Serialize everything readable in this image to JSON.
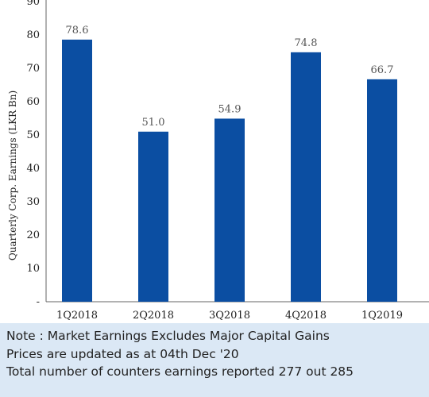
{
  "chart_data": {
    "type": "bar",
    "categories": [
      "1Q2018",
      "2Q2018",
      "3Q2018",
      "4Q2018",
      "1Q2019"
    ],
    "values": [
      78.6,
      51.0,
      54.9,
      74.8,
      66.7
    ],
    "value_labels": [
      "78.6",
      "51.0",
      "54.9",
      "74.8",
      "66.7"
    ],
    "ylabel": "Quarterly Corp. Earnings (LKR Bn)",
    "ylim": [
      0,
      90
    ],
    "yticks": [
      "-",
      "10",
      "20",
      "30",
      "40",
      "50",
      "60",
      "70",
      "80",
      "90"
    ],
    "grid": false,
    "bar_color": "#0b4ea2"
  },
  "notes": [
    "Note : Market Earnings Excludes Major Capital Gains",
    "Prices are updated as at 04th Dec '20",
    "Total number of counters earnings reported 277 out 285"
  ],
  "colors": {
    "notes_background": "#dbe8f5"
  }
}
